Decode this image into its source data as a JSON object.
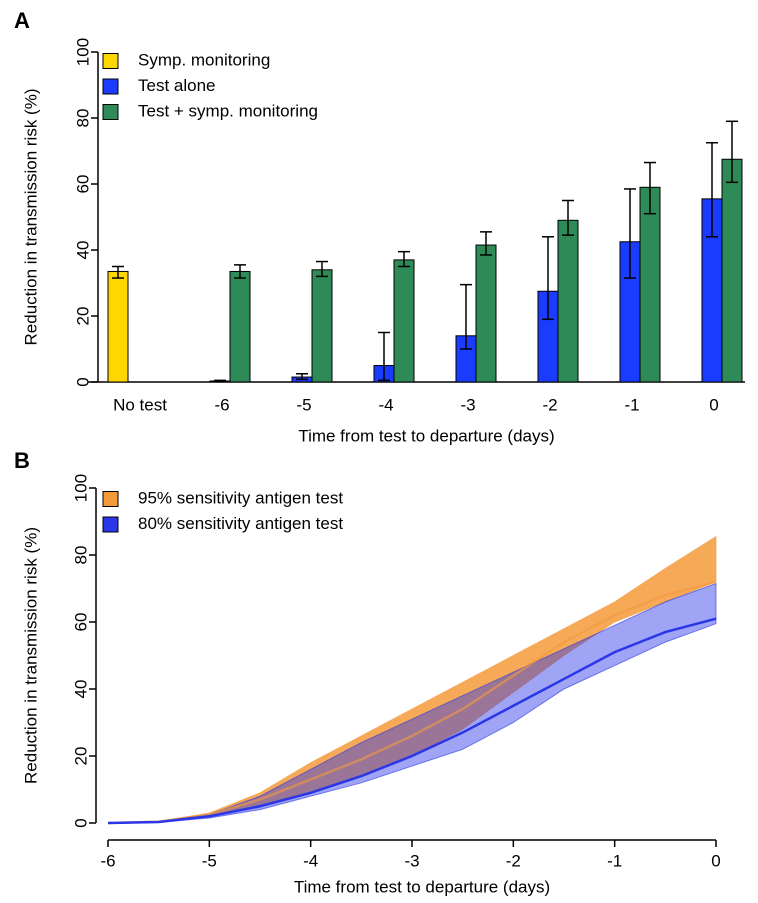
{
  "chart_data": [
    {
      "type": "bar",
      "label": "A",
      "xlabel": "Time from test to departure (days)",
      "ylabel": "Reduction in transmission risk (%)",
      "categories": [
        "No test",
        "-6",
        "-5",
        "-4",
        "-3",
        "-2",
        "-1",
        "0"
      ],
      "series": [
        {
          "name": "Symp. monitoring",
          "color": "#ffd700",
          "values": [
            33.5,
            null,
            null,
            null,
            null,
            null,
            null,
            null
          ],
          "lower": [
            31.5,
            null,
            null,
            null,
            null,
            null,
            null,
            null
          ],
          "upper": [
            35,
            null,
            null,
            null,
            null,
            null,
            null,
            null
          ]
        },
        {
          "name": "Test alone",
          "color": "#1a3cff",
          "values": [
            null,
            0.3,
            1.5,
            5,
            14,
            27.5,
            42.5,
            55.5
          ],
          "lower": [
            null,
            0.2,
            0.8,
            0.5,
            10,
            19,
            31.5,
            44
          ],
          "upper": [
            null,
            0.5,
            2.5,
            15,
            29.5,
            44,
            58.5,
            72.5
          ]
        },
        {
          "name": "Test + symp. monitoring",
          "color": "#2e8b57",
          "values": [
            null,
            33.5,
            34,
            37,
            41.5,
            49,
            59,
            67.5
          ],
          "lower": [
            null,
            31.5,
            32,
            35,
            38.5,
            44.5,
            51,
            60.5
          ],
          "upper": [
            null,
            35.5,
            36.5,
            39.5,
            45.5,
            55,
            66.5,
            79
          ]
        }
      ],
      "ylim": [
        0,
        100
      ],
      "yticks": [
        0,
        20,
        40,
        60,
        80,
        100
      ],
      "legend": "top-left"
    },
    {
      "type": "band",
      "label": "B",
      "xlabel": "Time from test to departure (days)",
      "ylabel": "Reduction in transmission risk (%)",
      "x": [
        -6,
        -5.5,
        -5,
        -4.5,
        -4,
        -3.5,
        -3,
        -2.5,
        -2,
        -1.5,
        -1,
        -0.5,
        0
      ],
      "series": [
        {
          "name": "95% sensitivity antigen test",
          "color": "#f59a3a",
          "values": [
            0,
            0.4,
            2.5,
            7,
            13,
            19,
            26,
            34,
            44,
            54,
            62,
            68,
            72
          ],
          "lower": [
            0,
            0.3,
            2,
            5,
            9,
            14,
            20,
            28,
            39,
            50,
            60,
            66,
            72
          ],
          "upper": [
            0,
            0.5,
            3,
            9,
            18,
            26,
            34,
            42,
            50,
            58,
            66,
            76,
            85.5
          ]
        },
        {
          "name": "80% sensitivity antigen test",
          "color": "#2a36e8",
          "values": [
            0,
            0.3,
            2,
            5,
            9,
            14,
            20,
            27,
            35,
            43,
            51,
            57,
            61
          ],
          "lower": [
            0,
            0.2,
            1.5,
            4,
            8,
            12,
            17,
            22,
            30,
            40,
            47,
            54,
            59.5
          ],
          "upper": [
            0,
            0.4,
            2.5,
            8,
            16,
            24,
            31,
            38,
            45,
            52,
            59,
            66,
            71.5
          ]
        }
      ],
      "xlim": [
        -6,
        0
      ],
      "xticks": [
        -6,
        -5,
        -4,
        -3,
        -2,
        -1,
        0
      ],
      "ylim": [
        0,
        100
      ],
      "yticks": [
        0,
        20,
        40,
        60,
        80,
        100
      ],
      "legend": "top-left"
    }
  ]
}
